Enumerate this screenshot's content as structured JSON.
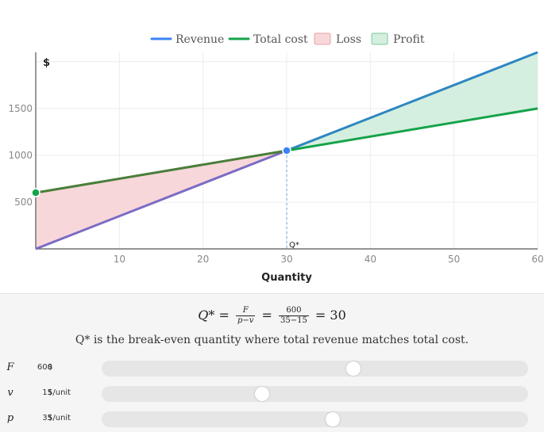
{
  "chart_data": {
    "type": "line",
    "legend": [
      "Revenue",
      "Total cost",
      "Loss",
      "Profit"
    ],
    "legend_placement": "top-center",
    "ylabel": "$",
    "xlabel": "Quantity",
    "xlim": [
      0,
      60
    ],
    "ylim": [
      0,
      2100
    ],
    "x_ticks": [
      10,
      20,
      30,
      40,
      50,
      60
    ],
    "y_ticks": [
      500,
      1000,
      1500
    ],
    "grid": true,
    "series": [
      {
        "name": "Revenue",
        "x": [
          0,
          60
        ],
        "y": [
          0,
          2100
        ],
        "color": "#2e86c1"
      },
      {
        "name": "Total cost",
        "x": [
          0,
          60
        ],
        "y": [
          600,
          1500
        ],
        "color": "#16a34a"
      }
    ],
    "regions": [
      {
        "name": "Loss",
        "from_x": 0,
        "to_x": 30,
        "fill": "#f8d7da",
        "stroke": "#e8a0a6"
      },
      {
        "name": "Profit",
        "from_x": 30,
        "to_x": 60,
        "fill": "#d4efdf",
        "stroke": "#7cc79a"
      }
    ],
    "markers": [
      {
        "x": 0,
        "y": 600,
        "color": "#16a34a"
      },
      {
        "x": 30,
        "y": 1050,
        "color": "#3b82f6"
      }
    ],
    "annotation": {
      "label": "Q*",
      "x": 30
    }
  },
  "colors": {
    "revenue": "#2e86c1",
    "revenue_loss": "#7a6cc4",
    "cost": "#16a34a",
    "cost_loss": "#4a7e3a",
    "legend_revenue": "#3b82f6",
    "legend_cost": "#16a34a"
  },
  "formula": {
    "lhs": "Q*",
    "f_num": "F",
    "f_den": "p−v",
    "n_num": "600",
    "n_den": "35−15",
    "result": "30"
  },
  "caption": "Q* is the break-even quantity where total revenue matches total cost.",
  "controls": [
    {
      "symbol": "F",
      "value": "600",
      "unit": "$",
      "fraction": 0.59
    },
    {
      "symbol": "v",
      "value": "15",
      "unit": "$/unit",
      "fraction": 0.377
    },
    {
      "symbol": "p",
      "value": "35",
      "unit": "$/unit",
      "fraction": 0.542
    }
  ]
}
